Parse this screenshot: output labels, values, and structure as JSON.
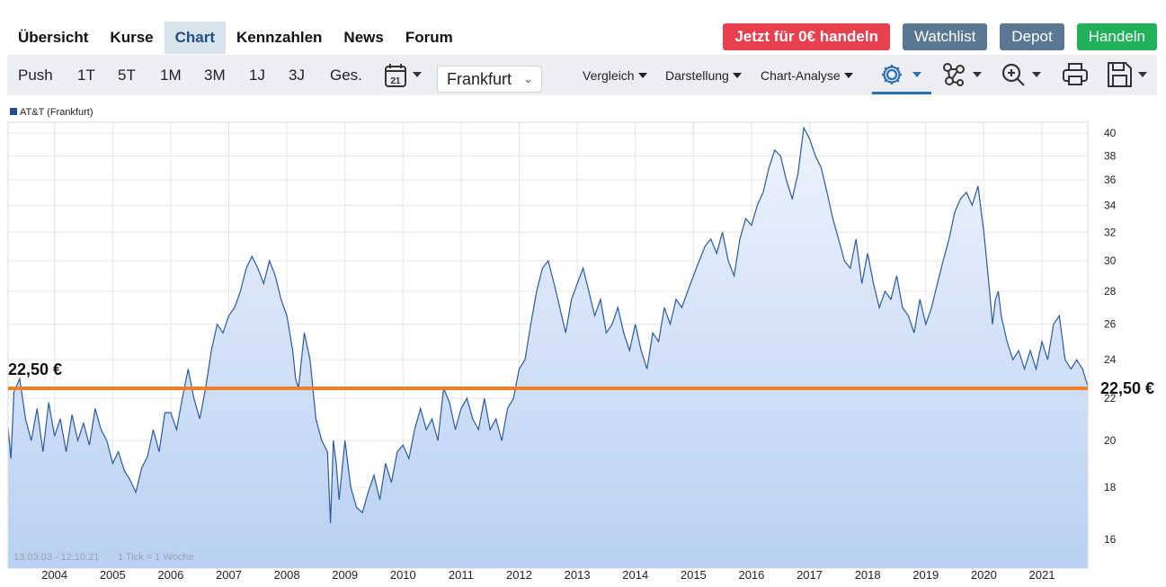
{
  "nav": {
    "tabs": [
      "Übersicht",
      "Kurse",
      "Chart",
      "Kennzahlen",
      "News",
      "Forum"
    ],
    "active": "Chart"
  },
  "buttons": {
    "trade_free": "Jetzt für 0€ handeln",
    "watchlist": "Watchlist",
    "depot": "Depot",
    "handeln": "Handeln"
  },
  "toolbar": {
    "periods": [
      "Push",
      "1T",
      "5T",
      "1M",
      "3M",
      "1J",
      "3J",
      "Ges."
    ],
    "calendar_day": "21",
    "exchange": "Frankfurt",
    "menus": [
      "Vergleich",
      "Darstellung",
      "Chart-Analyse"
    ],
    "icons": [
      "gear-icon",
      "network-icon",
      "zoom-icon",
      "printer-icon",
      "save-icon"
    ]
  },
  "colors": {
    "line": "#2a5aa0",
    "area_top": "#edf3fc",
    "area_bottom": "#b9d0f2",
    "hline": "#f07f2a",
    "active_tab_bg": "#d9e3ee",
    "red_button": "#e8404f",
    "grey_button": "#5a7893",
    "green_button": "#20b15a"
  },
  "chart_data": {
    "type": "area",
    "legend": "AT&T (Frankfurt)",
    "date_range_note": "13.03.03 - 12.10.21",
    "tick_note": "1 Tick = 1 Woche",
    "x_ticks": [
      "2004",
      "2005",
      "2006",
      "2007",
      "2008",
      "2009",
      "2010",
      "2011",
      "2012",
      "2013",
      "2014",
      "2015",
      "2016",
      "2017",
      "2018",
      "2019",
      "2020",
      "2021"
    ],
    "y_ticks": [
      16,
      18,
      20,
      22,
      24,
      26,
      28,
      30,
      32,
      34,
      36,
      38,
      40
    ],
    "y_scale": "log",
    "xlim": [
      2003.2,
      2021.79
    ],
    "ylim": [
      15,
      41
    ],
    "grid": true,
    "series": [
      {
        "x": [
          2003.2,
          2003.25,
          2003.3,
          2003.4,
          2003.5,
          2003.6,
          2003.7,
          2003.8,
          2003.9,
          2004.0,
          2004.1,
          2004.2,
          2004.3,
          2004.4,
          2004.5,
          2004.6,
          2004.7,
          2004.8,
          2004.9,
          2005.0,
          2005.1,
          2005.2,
          2005.3,
          2005.4,
          2005.5,
          2005.6,
          2005.7,
          2005.8,
          2005.9,
          2006.0,
          2006.1,
          2006.2,
          2006.3,
          2006.4,
          2006.5,
          2006.6,
          2006.7,
          2006.8,
          2006.9,
          2007.0,
          2007.1,
          2007.2,
          2007.3,
          2007.4,
          2007.5,
          2007.6,
          2007.7,
          2007.8,
          2007.9,
          2008.0,
          2008.1,
          2008.15,
          2008.2,
          2008.3,
          2008.4,
          2008.5,
          2008.6,
          2008.7,
          2008.75,
          2008.78,
          2008.8,
          2008.85,
          2008.9,
          2009.0,
          2009.1,
          2009.2,
          2009.3,
          2009.4,
          2009.5,
          2009.6,
          2009.7,
          2009.8,
          2009.9,
          2010.0,
          2010.1,
          2010.2,
          2010.3,
          2010.4,
          2010.5,
          2010.6,
          2010.7,
          2010.8,
          2010.9,
          2011.0,
          2011.1,
          2011.2,
          2011.3,
          2011.4,
          2011.5,
          2011.6,
          2011.7,
          2011.8,
          2011.9,
          2012.0,
          2012.1,
          2012.2,
          2012.3,
          2012.4,
          2012.5,
          2012.6,
          2012.7,
          2012.8,
          2012.9,
          2013.0,
          2013.1,
          2013.2,
          2013.3,
          2013.4,
          2013.5,
          2013.6,
          2013.7,
          2013.8,
          2013.9,
          2014.0,
          2014.1,
          2014.2,
          2014.3,
          2014.4,
          2014.5,
          2014.6,
          2014.7,
          2014.8,
          2014.9,
          2015.0,
          2015.1,
          2015.2,
          2015.3,
          2015.4,
          2015.5,
          2015.6,
          2015.7,
          2015.8,
          2015.9,
          2016.0,
          2016.1,
          2016.2,
          2016.3,
          2016.4,
          2016.5,
          2016.6,
          2016.7,
          2016.8,
          2016.9,
          2017.0,
          2017.1,
          2017.2,
          2017.3,
          2017.4,
          2017.5,
          2017.6,
          2017.7,
          2017.8,
          2017.9,
          2018.0,
          2018.1,
          2018.2,
          2018.3,
          2018.4,
          2018.5,
          2018.6,
          2018.7,
          2018.8,
          2018.9,
          2019.0,
          2019.1,
          2019.2,
          2019.3,
          2019.4,
          2019.5,
          2019.6,
          2019.7,
          2019.8,
          2019.9,
          2020.0,
          2020.1,
          2020.15,
          2020.2,
          2020.25,
          2020.3,
          2020.4,
          2020.5,
          2020.6,
          2020.7,
          2020.8,
          2020.9,
          2021.0,
          2021.1,
          2021.2,
          2021.3,
          2021.4,
          2021.5,
          2021.6,
          2021.7,
          2021.79
        ],
        "y": [
          20.6,
          19.2,
          22.3,
          23.0,
          21.0,
          20.0,
          21.5,
          19.5,
          21.8,
          20.2,
          21.0,
          19.5,
          21.2,
          20.0,
          20.8,
          19.8,
          21.5,
          20.5,
          20.0,
          19.0,
          19.5,
          18.7,
          18.3,
          17.8,
          18.8,
          19.3,
          20.5,
          19.5,
          21.3,
          21.3,
          20.5,
          22.0,
          23.5,
          22.0,
          21.0,
          22.5,
          24.5,
          26.0,
          25.5,
          26.5,
          27.0,
          28.0,
          29.5,
          30.3,
          29.5,
          28.5,
          30.0,
          29.0,
          27.5,
          26.5,
          24.5,
          23.0,
          22.5,
          25.5,
          24.0,
          21.0,
          20.0,
          19.5,
          16.6,
          18.5,
          20.0,
          19.0,
          17.5,
          20.0,
          18.0,
          17.2,
          17.0,
          17.8,
          18.5,
          17.5,
          19.0,
          18.2,
          19.5,
          19.8,
          19.2,
          20.5,
          21.5,
          20.5,
          21.0,
          20.0,
          22.5,
          21.8,
          20.5,
          21.5,
          22.0,
          21.0,
          20.5,
          22.0,
          20.5,
          21.0,
          20.0,
          21.5,
          22.0,
          23.5,
          24.0,
          26.0,
          28.0,
          29.5,
          30.0,
          28.5,
          27.0,
          25.5,
          27.5,
          28.5,
          29.5,
          28.0,
          26.5,
          27.5,
          25.5,
          26.0,
          27.0,
          25.5,
          24.5,
          26.0,
          24.5,
          23.5,
          25.5,
          25.0,
          27.0,
          26.0,
          27.5,
          27.0,
          28.0,
          29.0,
          30.0,
          31.0,
          31.5,
          30.5,
          32.0,
          30.0,
          29.0,
          31.5,
          33.0,
          32.5,
          34.0,
          35.0,
          37.0,
          38.5,
          38.0,
          36.0,
          34.5,
          36.5,
          40.5,
          39.5,
          38.0,
          37.0,
          35.0,
          33.0,
          31.5,
          30.0,
          29.5,
          31.5,
          28.5,
          30.5,
          28.5,
          27.0,
          28.0,
          27.5,
          29.0,
          27.0,
          26.5,
          25.5,
          27.5,
          26.0,
          27.0,
          28.5,
          30.0,
          31.5,
          33.5,
          34.5,
          35.0,
          34.0,
          35.5,
          32.0,
          28.0,
          26.0,
          27.5,
          28.0,
          26.5,
          25.0,
          24.0,
          24.5,
          23.5,
          24.5,
          23.5,
          25.0,
          24.0,
          26.0,
          26.5,
          24.0,
          23.5,
          24.0,
          23.5,
          22.6
        ]
      }
    ],
    "hline": {
      "value": 22.5,
      "label_left": "22,50 €",
      "label_right": "22,50 €"
    }
  }
}
